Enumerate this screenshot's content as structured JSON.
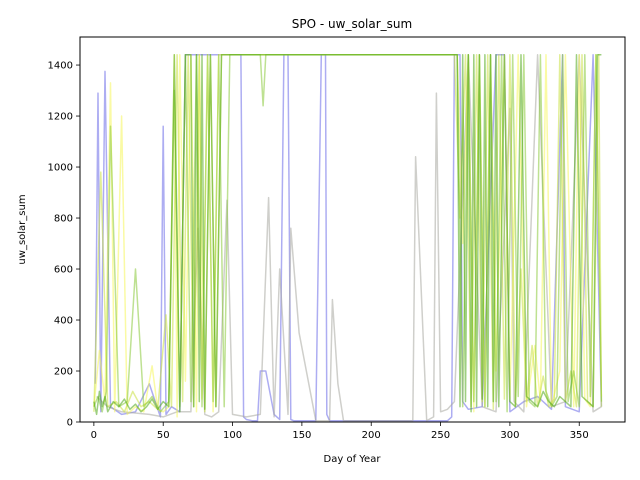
{
  "chart_data": {
    "type": "line",
    "title": "SPO - uw_solar_sum",
    "xlabel": "Day of Year",
    "ylabel": "uw_solar_sum",
    "xlim": [
      -10,
      383
    ],
    "ylim": [
      0,
      1510
    ],
    "xticks": [
      0,
      50,
      100,
      150,
      200,
      250,
      300,
      350
    ],
    "yticks": [
      0,
      200,
      400,
      600,
      800,
      1000,
      1200,
      1400
    ],
    "grid": false,
    "legend": "none",
    "series_colors": [
      "#6a6ae8",
      "#a8a8a0",
      "#f5f55a",
      "#c8e040",
      "#88c838",
      "#4ea818"
    ],
    "series": [
      {
        "color": "#6a6ae8",
        "x": [
          1,
          3,
          5,
          8,
          12,
          20,
          30,
          40,
          48,
          50,
          52,
          56,
          62,
          66,
          68,
          70,
          72,
          80,
          84,
          86,
          88,
          92,
          96,
          100,
          104,
          106,
          108,
          110,
          114,
          118,
          120,
          124,
          130,
          134,
          137,
          138,
          139,
          140,
          142,
          144,
          148,
          160,
          164,
          165,
          166,
          167,
          168,
          170,
          180,
          200,
          220,
          240,
          255,
          258,
          260,
          262,
          264,
          266,
          270,
          280,
          290,
          296,
          300,
          310,
          320,
          330,
          338,
          340,
          350,
          360,
          366
        ],
        "y": [
          150,
          1290,
          40,
          1375,
          60,
          30,
          40,
          150,
          20,
          1160,
          30,
          60,
          40,
          1440,
          1440,
          1440,
          1440,
          1440,
          1440,
          1440,
          1440,
          1440,
          1440,
          1440,
          1440,
          1440,
          20,
          10,
          5,
          5,
          200,
          200,
          30,
          10,
          1440,
          1440,
          1440,
          1440,
          10,
          5,
          5,
          5,
          1440,
          1440,
          1440,
          1440,
          30,
          5,
          5,
          5,
          5,
          5,
          5,
          20,
          1440,
          1440,
          1440,
          80,
          50,
          60,
          1440,
          1440,
          40,
          80,
          100,
          50,
          1440,
          60,
          40,
          1440,
          60
        ]
      },
      {
        "color": "#a8a8a0",
        "x": [
          2,
          6,
          10,
          20,
          40,
          50,
          60,
          70,
          75,
          80,
          85,
          90,
          96,
          100,
          110,
          120,
          126,
          130,
          134,
          140,
          142,
          148,
          160,
          170,
          172,
          176,
          180,
          190,
          200,
          210,
          220,
          230,
          232,
          240,
          245,
          247,
          250,
          255,
          260,
          270,
          280,
          290,
          300,
          303,
          310,
          320,
          330,
          340,
          350,
          360,
          366
        ],
        "y": [
          100,
          80,
          60,
          40,
          30,
          20,
          40,
          40,
          760,
          30,
          20,
          40,
          870,
          30,
          20,
          30,
          880,
          20,
          600,
          30,
          760,
          350,
          5,
          5,
          480,
          150,
          5,
          5,
          5,
          5,
          5,
          5,
          1040,
          5,
          20,
          1290,
          40,
          50,
          80,
          1440,
          60,
          40,
          1230,
          80,
          40,
          1440,
          60,
          80,
          1440,
          40,
          60
        ]
      },
      {
        "color": "#f5f55a",
        "x": [
          0,
          4,
          8,
          12,
          15,
          20,
          24,
          30,
          36,
          42,
          46,
          50,
          54,
          58,
          60,
          62,
          66,
          70,
          74,
          76,
          78,
          82,
          86,
          90,
          94,
          98,
          100,
          262,
          266,
          270,
          274,
          278,
          282,
          286,
          290,
          296,
          300,
          306,
          312,
          318,
          322,
          326,
          330,
          336,
          340,
          346,
          350,
          354,
          358,
          362,
          366
        ],
        "y": [
          60,
          280,
          80,
          1330,
          40,
          1200,
          30,
          60,
          40,
          220,
          50,
          40,
          60,
          1440,
          20,
          1440,
          160,
          1440,
          40,
          1440,
          90,
          1440,
          40,
          1440,
          1440,
          1440,
          1440,
          1440,
          700,
          1440,
          40,
          1440,
          60,
          1440,
          200,
          1440,
          90,
          1440,
          60,
          300,
          80,
          1440,
          60,
          200,
          1440,
          60,
          1440,
          90,
          60,
          1440,
          100
        ]
      },
      {
        "color": "#c8e040",
        "x": [
          0,
          5,
          10,
          16,
          22,
          28,
          34,
          40,
          46,
          52,
          56,
          60,
          64,
          68,
          72,
          76,
          80,
          84,
          88,
          92,
          96,
          100,
          260,
          264,
          268,
          272,
          276,
          280,
          284,
          288,
          292,
          296,
          300,
          304,
          308,
          312,
          316,
          320,
          324,
          328,
          332,
          336,
          340,
          344,
          348,
          352,
          356,
          360,
          364,
          366
        ],
        "y": [
          40,
          980,
          60,
          80,
          40,
          120,
          60,
          80,
          50,
          420,
          60,
          1440,
          80,
          1440,
          60,
          1440,
          40,
          1440,
          60,
          1440,
          1440,
          1440,
          1440,
          800,
          1440,
          60,
          1440,
          80,
          1440,
          50,
          1440,
          90,
          1440,
          60,
          600,
          80,
          300,
          60,
          180,
          60,
          90,
          1440,
          80,
          200,
          60,
          1440,
          80,
          60,
          1440,
          60
        ]
      },
      {
        "color": "#88c838",
        "x": [
          0,
          3,
          6,
          9,
          12,
          18,
          24,
          30,
          36,
          42,
          48,
          54,
          58,
          62,
          66,
          70,
          74,
          78,
          82,
          86,
          90,
          94,
          98,
          102,
          120,
          122,
          124,
          262,
          266,
          270,
          274,
          278,
          282,
          286,
          290,
          294,
          298,
          302,
          306,
          310,
          314,
          318,
          322,
          326,
          330,
          334,
          338,
          342,
          346,
          350,
          354,
          358,
          362,
          366
        ],
        "y": [
          60,
          100,
          40,
          120,
          1160,
          60,
          80,
          600,
          60,
          100,
          40,
          80,
          1300,
          60,
          1440,
          80,
          1440,
          60,
          1440,
          80,
          1440,
          60,
          1440,
          1440,
          1440,
          1240,
          1440,
          1440,
          60,
          1440,
          80,
          1440,
          60,
          1440,
          80,
          1440,
          40,
          1440,
          100,
          1440,
          80,
          60,
          1440,
          120,
          60,
          100,
          1440,
          80,
          200,
          60,
          1440,
          100,
          1440,
          80
        ]
      },
      {
        "color": "#4ea818",
        "x": [
          0,
          2,
          4,
          6,
          8,
          10,
          14,
          18,
          22,
          26,
          30,
          34,
          38,
          42,
          46,
          50,
          54,
          58,
          62,
          66,
          70,
          72,
          74,
          76,
          78,
          80,
          84,
          88,
          92,
          96,
          100,
          102,
          104,
          200,
          256,
          262,
          264,
          266,
          268,
          270,
          272,
          274,
          276,
          278,
          280,
          282,
          284,
          286,
          288,
          290,
          292,
          296,
          300,
          304,
          308,
          312,
          316,
          320,
          324,
          328,
          332,
          336,
          340,
          344,
          348,
          352,
          356,
          360,
          363,
          366
        ],
        "y": [
          80,
          30,
          120,
          60,
          100,
          40,
          80,
          60,
          90,
          50,
          70,
          40,
          60,
          90,
          50,
          80,
          60,
          1440,
          40,
          1440,
          1440,
          60,
          1440,
          80,
          1440,
          50,
          1440,
          60,
          1440,
          1440,
          1440,
          1440,
          1440,
          1440,
          1440,
          1440,
          60,
          1440,
          80,
          1440,
          40,
          1440,
          60,
          1440,
          90,
          1440,
          60,
          1440,
          80,
          1440,
          60,
          1440,
          80,
          60,
          1440,
          100,
          80,
          60,
          120,
          80,
          60,
          100,
          80,
          60,
          1440,
          100,
          80,
          60,
          1440,
          1440
        ]
      }
    ]
  }
}
